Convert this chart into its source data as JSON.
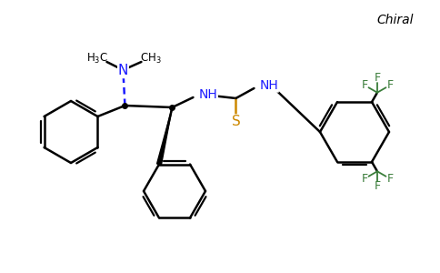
{
  "bg": "#ffffff",
  "lw": 1.8,
  "colors": {
    "bond": "#000000",
    "N": "#1a1aff",
    "S": "#cc8800",
    "F": "#3a7d3a",
    "C": "#000000"
  },
  "chiral_text": "Chiral",
  "figsize": [
    4.84,
    3.0
  ],
  "dpi": 100
}
